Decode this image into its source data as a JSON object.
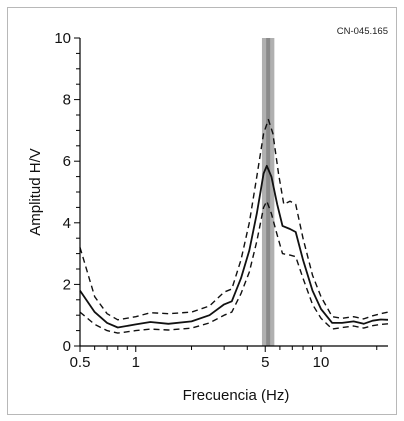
{
  "chart_data": {
    "type": "line",
    "annotation": "CN-045.165",
    "xlabel": "Frecuencia (Hz)",
    "ylabel": "Amplitud H/V",
    "xscale": "log",
    "xlim": [
      0.5,
      23
    ],
    "ylim": [
      0,
      10
    ],
    "xticks": [
      {
        "value": 0.5,
        "label": "0.5"
      },
      {
        "value": 1,
        "label": "1"
      },
      {
        "value": 5,
        "label": "5"
      },
      {
        "value": 10,
        "label": "10"
      }
    ],
    "yticks": [
      {
        "value": 0,
        "label": "0"
      },
      {
        "value": 2,
        "label": "2"
      },
      {
        "value": 4,
        "label": "4"
      },
      {
        "value": 6,
        "label": "6"
      },
      {
        "value": 8,
        "label": "8"
      },
      {
        "value": 10,
        "label": "10"
      }
    ],
    "peak_band": {
      "from": 4.8,
      "to": 5.6
    },
    "grid": false,
    "colors": {
      "line": "#111111",
      "band": "#b0b0b0",
      "band_center": "#8a8a8a"
    },
    "series": [
      {
        "style": "solid",
        "points": [
          [
            0.5,
            1.8
          ],
          [
            0.6,
            1.1
          ],
          [
            0.7,
            0.75
          ],
          [
            0.8,
            0.6
          ],
          [
            1.0,
            0.7
          ],
          [
            1.2,
            0.78
          ],
          [
            1.5,
            0.72
          ],
          [
            2.0,
            0.8
          ],
          [
            2.5,
            1.0
          ],
          [
            3.0,
            1.35
          ],
          [
            3.3,
            1.45
          ],
          [
            3.7,
            2.2
          ],
          [
            4.1,
            3.1
          ],
          [
            4.5,
            4.3
          ],
          [
            4.9,
            5.6
          ],
          [
            5.1,
            5.85
          ],
          [
            5.4,
            5.5
          ],
          [
            5.8,
            4.6
          ],
          [
            6.2,
            3.9
          ],
          [
            6.8,
            3.8
          ],
          [
            7.3,
            3.7
          ],
          [
            8.0,
            2.8
          ],
          [
            9.0,
            1.8
          ],
          [
            10.0,
            1.2
          ],
          [
            11.5,
            0.75
          ],
          [
            13,
            0.75
          ],
          [
            15,
            0.8
          ],
          [
            17,
            0.72
          ],
          [
            19,
            0.82
          ],
          [
            21,
            0.86
          ],
          [
            23,
            0.85
          ]
        ]
      },
      {
        "style": "dashed",
        "points": [
          [
            0.5,
            3.2
          ],
          [
            0.6,
            1.6
          ],
          [
            0.7,
            1.05
          ],
          [
            0.8,
            0.85
          ],
          [
            1.0,
            0.95
          ],
          [
            1.2,
            1.08
          ],
          [
            1.5,
            1.05
          ],
          [
            2.0,
            1.1
          ],
          [
            2.5,
            1.3
          ],
          [
            3.0,
            1.75
          ],
          [
            3.3,
            1.85
          ],
          [
            3.7,
            2.8
          ],
          [
            4.1,
            4.0
          ],
          [
            4.5,
            5.5
          ],
          [
            4.9,
            6.9
          ],
          [
            5.2,
            7.35
          ],
          [
            5.5,
            6.9
          ],
          [
            5.9,
            5.6
          ],
          [
            6.3,
            4.6
          ],
          [
            6.8,
            4.7
          ],
          [
            7.3,
            4.6
          ],
          [
            8.0,
            3.5
          ],
          [
            9.0,
            2.3
          ],
          [
            10.0,
            1.6
          ],
          [
            11.5,
            0.95
          ],
          [
            13,
            0.9
          ],
          [
            15,
            0.95
          ],
          [
            17,
            0.88
          ],
          [
            19,
            0.98
          ],
          [
            21,
            1.05
          ],
          [
            23,
            1.1
          ]
        ]
      },
      {
        "style": "dashed",
        "points": [
          [
            0.5,
            1.1
          ],
          [
            0.6,
            0.7
          ],
          [
            0.7,
            0.5
          ],
          [
            0.8,
            0.42
          ],
          [
            1.0,
            0.5
          ],
          [
            1.2,
            0.55
          ],
          [
            1.5,
            0.52
          ],
          [
            2.0,
            0.58
          ],
          [
            2.5,
            0.75
          ],
          [
            3.0,
            1.0
          ],
          [
            3.3,
            1.1
          ],
          [
            3.7,
            1.7
          ],
          [
            4.1,
            2.4
          ],
          [
            4.5,
            3.4
          ],
          [
            4.9,
            4.5
          ],
          [
            5.1,
            4.7
          ],
          [
            5.4,
            4.3
          ],
          [
            5.8,
            3.6
          ],
          [
            6.2,
            3.0
          ],
          [
            6.8,
            2.95
          ],
          [
            7.3,
            2.9
          ],
          [
            8.0,
            2.2
          ],
          [
            9.0,
            1.35
          ],
          [
            10.0,
            0.9
          ],
          [
            11.5,
            0.55
          ],
          [
            13,
            0.6
          ],
          [
            15,
            0.65
          ],
          [
            17,
            0.58
          ],
          [
            19,
            0.66
          ],
          [
            21,
            0.7
          ],
          [
            23,
            0.72
          ]
        ]
      }
    ]
  }
}
